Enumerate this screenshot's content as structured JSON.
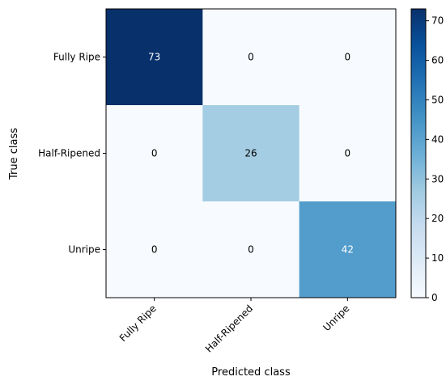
{
  "chart_data": {
    "type": "heatmap",
    "title": "",
    "xlabel": "Predicted class",
    "ylabel": "True class",
    "x_categories": [
      "Fully Ripe",
      "Half-Ripened",
      "Unripe"
    ],
    "y_categories": [
      "Fully Ripe",
      "Half-Ripened",
      "Unripe"
    ],
    "values": [
      [
        73,
        0,
        0
      ],
      [
        0,
        26,
        0
      ],
      [
        0,
        0,
        42
      ]
    ],
    "colormap": "Blues",
    "value_range": [
      0,
      73
    ],
    "colorbar": {
      "ticks": [
        0,
        10,
        20,
        30,
        40,
        50,
        60,
        70
      ],
      "tick_labels": [
        "0",
        "10",
        "20",
        "30",
        "40",
        "50",
        "60",
        "70"
      ]
    },
    "grid": false,
    "legend": "colorbar-right"
  }
}
